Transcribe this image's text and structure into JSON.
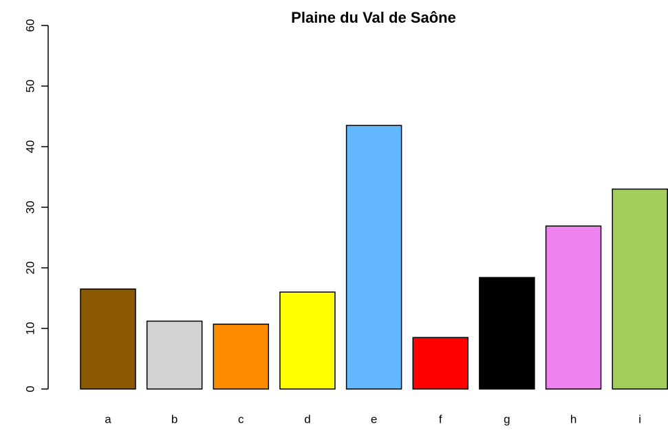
{
  "chart_data": {
    "type": "bar",
    "title": "Plaine du Val de Saône",
    "categories": [
      "a",
      "b",
      "c",
      "d",
      "e",
      "f",
      "g",
      "h",
      "i"
    ],
    "values": [
      16.5,
      11.2,
      10.7,
      16.0,
      43.5,
      8.5,
      18.4,
      26.9,
      33.0
    ],
    "colors": [
      "#8B5A00",
      "#D3D3D3",
      "#FF8C00",
      "#FFFF00",
      "#63B8FF",
      "#FF0000",
      "#000000",
      "#EE82EE",
      "#A2CD5A"
    ],
    "ylim": [
      0,
      60
    ],
    "yticks": [
      0,
      10,
      20,
      30,
      40,
      50,
      60
    ],
    "grid": false
  }
}
